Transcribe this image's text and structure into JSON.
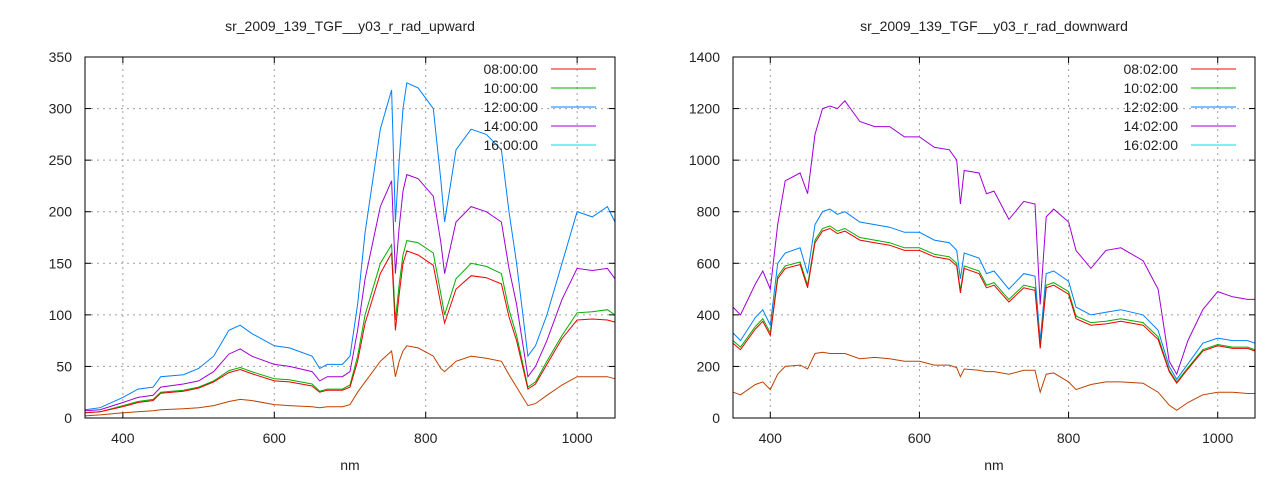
{
  "chart_data": [
    {
      "type": "line",
      "title": "sr_2009_139_TGF__y03_r_rad_upward",
      "xlabel": "nm",
      "ylabel": "",
      "xlim": [
        350,
        1050
      ],
      "ylim": [
        0,
        350
      ],
      "xticks": [
        400,
        600,
        800,
        1000
      ],
      "yticks": [
        0,
        50,
        100,
        150,
        200,
        250,
        300,
        350
      ],
      "grid": true,
      "legend_position": "top-right",
      "x": [
        350,
        370,
        400,
        420,
        440,
        450,
        480,
        500,
        520,
        540,
        555,
        570,
        600,
        620,
        650,
        660,
        670,
        690,
        700,
        710,
        720,
        740,
        755,
        760,
        765,
        770,
        775,
        790,
        810,
        820,
        825,
        840,
        860,
        880,
        900,
        910,
        920,
        935,
        945,
        960,
        980,
        1000,
        1020,
        1040,
        1050
      ],
      "series": [
        {
          "name": "08:00:00",
          "legend_color": "#ff0000",
          "line_color": "#ee0000",
          "values": [
            5,
            6,
            11,
            15,
            17,
            24,
            26,
            29,
            35,
            44,
            47,
            43,
            36,
            35,
            31,
            25,
            27,
            27,
            30,
            55,
            92,
            140,
            160,
            85,
            120,
            150,
            162,
            158,
            148,
            110,
            92,
            125,
            138,
            136,
            130,
            98,
            75,
            28,
            33,
            52,
            77,
            95,
            96,
            95,
            93
          ]
        },
        {
          "name": "10:00:00",
          "legend_color": "#00b000",
          "line_color": "#00b000",
          "values": [
            5,
            6,
            12,
            16,
            18,
            25,
            27,
            30,
            36,
            46,
            49,
            45,
            38,
            37,
            33,
            26,
            28,
            28,
            32,
            60,
            100,
            150,
            168,
            95,
            130,
            158,
            172,
            170,
            160,
            120,
            100,
            135,
            150,
            147,
            140,
            105,
            80,
            30,
            35,
            55,
            80,
            102,
            103,
            105,
            100
          ]
        },
        {
          "name": "12:00:00",
          "legend_color": "#0080ff",
          "line_color": "#0080ff",
          "values": [
            8,
            10,
            20,
            28,
            30,
            40,
            42,
            48,
            60,
            85,
            90,
            82,
            70,
            68,
            60,
            48,
            52,
            52,
            60,
            110,
            180,
            280,
            318,
            190,
            250,
            300,
            325,
            320,
            300,
            230,
            190,
            260,
            280,
            275,
            260,
            200,
            150,
            60,
            70,
            100,
            150,
            200,
            195,
            205,
            190
          ]
        },
        {
          "name": "14:00:00",
          "legend_color": "#a000d8",
          "line_color": "#a000d8",
          "values": [
            7,
            8,
            15,
            20,
            22,
            30,
            33,
            36,
            45,
            62,
            67,
            60,
            52,
            50,
            45,
            36,
            40,
            40,
            45,
            85,
            135,
            205,
            230,
            140,
            185,
            220,
            236,
            232,
            215,
            170,
            140,
            190,
            205,
            200,
            190,
            145,
            110,
            40,
            50,
            75,
            115,
            145,
            143,
            145,
            135
          ]
        },
        {
          "name": "16:00:00",
          "legend_color": "#00e0e0",
          "line_color": "#c04000",
          "values": [
            2,
            3,
            5,
            6,
            7,
            8,
            9,
            10,
            12,
            16,
            18,
            17,
            13,
            12,
            11,
            10,
            11,
            11,
            13,
            25,
            35,
            55,
            65,
            40,
            55,
            65,
            70,
            68,
            60,
            48,
            45,
            55,
            60,
            58,
            55,
            42,
            30,
            12,
            14,
            22,
            32,
            40,
            40,
            40,
            38
          ]
        }
      ]
    },
    {
      "type": "line",
      "title": "sr_2009_139_TGF__y03_r_rad_downward",
      "xlabel": "nm",
      "ylabel": "",
      "xlim": [
        350,
        1050
      ],
      "ylim": [
        0,
        1400
      ],
      "xticks": [
        400,
        600,
        800,
        1000
      ],
      "yticks": [
        0,
        200,
        400,
        600,
        800,
        1000,
        1200,
        1400
      ],
      "grid": true,
      "legend_position": "top-right",
      "x": [
        350,
        360,
        380,
        390,
        400,
        410,
        420,
        440,
        450,
        460,
        470,
        480,
        490,
        500,
        520,
        540,
        560,
        580,
        600,
        620,
        640,
        650,
        655,
        660,
        680,
        690,
        700,
        720,
        740,
        755,
        762,
        770,
        780,
        800,
        810,
        830,
        850,
        870,
        900,
        920,
        935,
        945,
        960,
        980,
        1000,
        1020,
        1040,
        1050
      ],
      "series": [
        {
          "name": "08:02:00",
          "legend_color": "#ff0000",
          "line_color": "#ee0000",
          "values": [
            290,
            265,
            345,
            375,
            320,
            540,
            580,
            595,
            505,
            680,
            725,
            735,
            715,
            725,
            690,
            680,
            670,
            650,
            650,
            625,
            615,
            590,
            485,
            580,
            560,
            505,
            515,
            450,
            505,
            495,
            270,
            505,
            515,
            480,
            385,
            360,
            365,
            375,
            360,
            305,
            180,
            135,
            190,
            260,
            280,
            270,
            270,
            260
          ]
        },
        {
          "name": "10:02:00",
          "legend_color": "#00b000",
          "line_color": "#00b000",
          "values": [
            300,
            275,
            355,
            385,
            330,
            550,
            590,
            605,
            515,
            690,
            735,
            745,
            725,
            735,
            700,
            690,
            680,
            660,
            660,
            635,
            625,
            600,
            495,
            590,
            570,
            515,
            525,
            460,
            515,
            505,
            275,
            515,
            525,
            490,
            395,
            370,
            375,
            385,
            370,
            315,
            185,
            140,
            195,
            265,
            285,
            275,
            275,
            265
          ]
        },
        {
          "name": "12:02:00",
          "legend_color": "#0080ff",
          "line_color": "#0080ff",
          "values": [
            330,
            300,
            390,
            420,
            360,
            600,
            640,
            660,
            560,
            750,
            800,
            810,
            790,
            800,
            760,
            750,
            740,
            720,
            720,
            690,
            680,
            650,
            540,
            640,
            620,
            560,
            570,
            500,
            560,
            550,
            300,
            560,
            570,
            530,
            430,
            400,
            410,
            420,
            400,
            340,
            200,
            150,
            210,
            290,
            310,
            300,
            300,
            290
          ]
        },
        {
          "name": "14:02:00",
          "legend_color": "#a000d8",
          "line_color": "#a000d8",
          "values": [
            430,
            400,
            520,
            570,
            500,
            750,
            920,
            950,
            870,
            1100,
            1200,
            1210,
            1200,
            1230,
            1150,
            1130,
            1130,
            1090,
            1090,
            1050,
            1040,
            1000,
            830,
            960,
            950,
            870,
            880,
            770,
            840,
            830,
            440,
            780,
            810,
            760,
            650,
            580,
            650,
            660,
            610,
            500,
            220,
            170,
            300,
            420,
            490,
            470,
            460,
            460
          ]
        },
        {
          "name": "16:02:00",
          "legend_color": "#00e0e0",
          "line_color": "#c04000",
          "values": [
            100,
            90,
            130,
            140,
            110,
            170,
            200,
            205,
            190,
            250,
            255,
            250,
            250,
            250,
            230,
            235,
            230,
            220,
            220,
            205,
            205,
            195,
            160,
            190,
            185,
            180,
            180,
            170,
            185,
            185,
            100,
            170,
            175,
            140,
            110,
            130,
            140,
            140,
            135,
            100,
            50,
            30,
            60,
            90,
            100,
            100,
            95,
            95
          ]
        }
      ]
    }
  ]
}
